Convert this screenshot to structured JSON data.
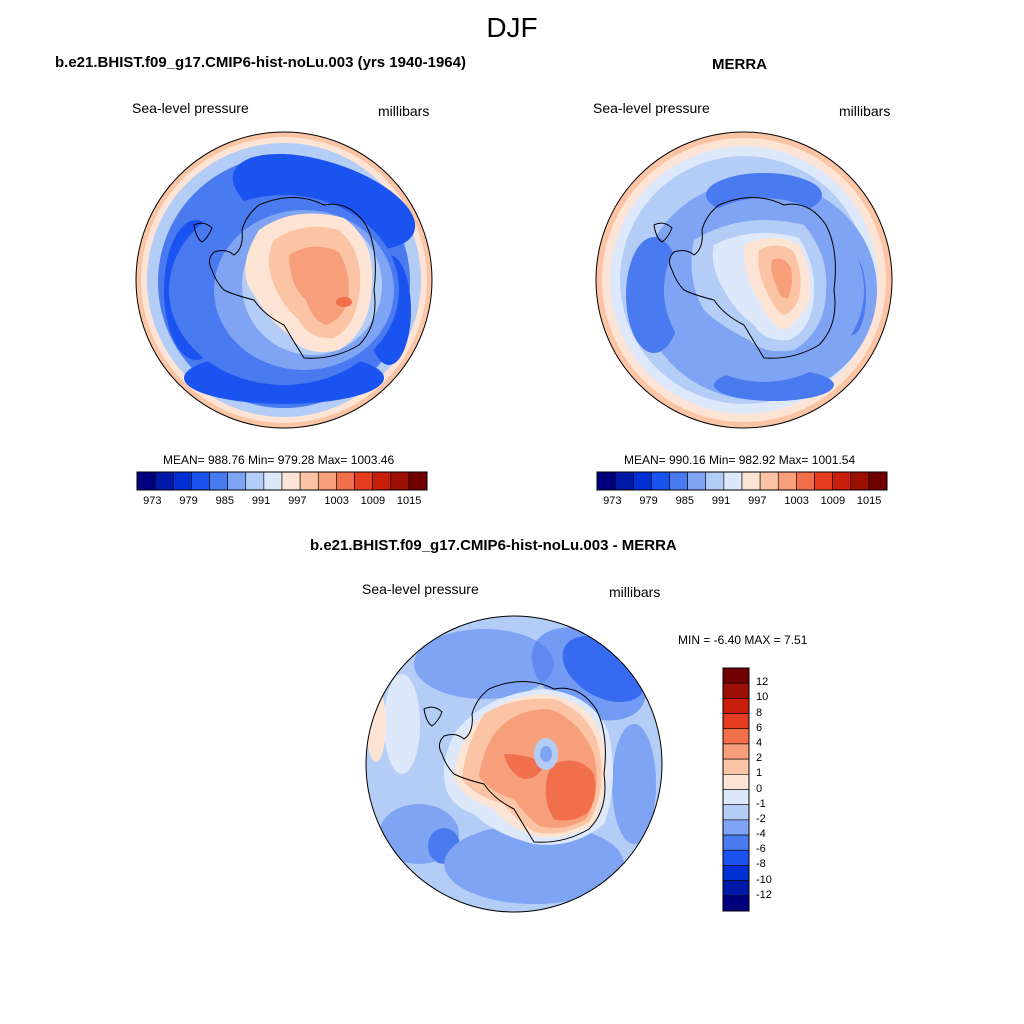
{
  "figure": {
    "title": "DJF"
  },
  "palette": {
    "wide": [
      "#00007f",
      "#0018a8",
      "#0030d4",
      "#1a53f0",
      "#4a7af0",
      "#7fa4f4",
      "#b4cdf7",
      "#dde9fb",
      "#fde4d4",
      "#fbc4a5",
      "#f79e7a",
      "#f16f4a",
      "#e53c1f",
      "#c81e0a",
      "#9c0f04",
      "#700000"
    ],
    "diff": [
      "#00007f",
      "#0018a8",
      "#0030d4",
      "#1a53f0",
      "#4a7af0",
      "#7fa4f4",
      "#b4cdf7",
      "#dde9fb",
      "#fde4d4",
      "#fbc4a5",
      "#f79e7a",
      "#f16f4a",
      "#e53c1f",
      "#c81e0a",
      "#9c0f04",
      "#700000"
    ]
  },
  "panels": [
    {
      "id": "model",
      "title": "b.e21.BHIST.f09_g17.CMIP6-hist-noLu.003 (yrs 1940-1964)",
      "left_label": "Sea-level pressure",
      "right_label": "millibars",
      "stats": "MEAN= 988.76  Min= 979.28  Max= 1003.46",
      "colorbar_ticks": [
        "973",
        "979",
        "985",
        "991",
        "997",
        "1003",
        "1009",
        "1015"
      ]
    },
    {
      "id": "obs",
      "title": "MERRA",
      "left_label": "Sea-level pressure",
      "right_label": "millibars",
      "stats": "MEAN= 990.16  Min= 982.92  Max= 1001.54",
      "colorbar_ticks": [
        "973",
        "979",
        "985",
        "991",
        "997",
        "1003",
        "1009",
        "1015"
      ]
    },
    {
      "id": "diff",
      "title": "b.e21.BHIST.f09_g17.CMIP6-hist-noLu.003 - MERRA",
      "left_label": "Sea-level pressure",
      "right_label": "millibars",
      "stats": "MIN =  -6.40 MAX =   7.51",
      "colorbar_ticks": [
        "12",
        "10",
        "8",
        "6",
        "4",
        "2",
        "1",
        "0",
        "-1",
        "-2",
        "-4",
        "-6",
        "-8",
        "-10",
        "-12"
      ]
    }
  ]
}
